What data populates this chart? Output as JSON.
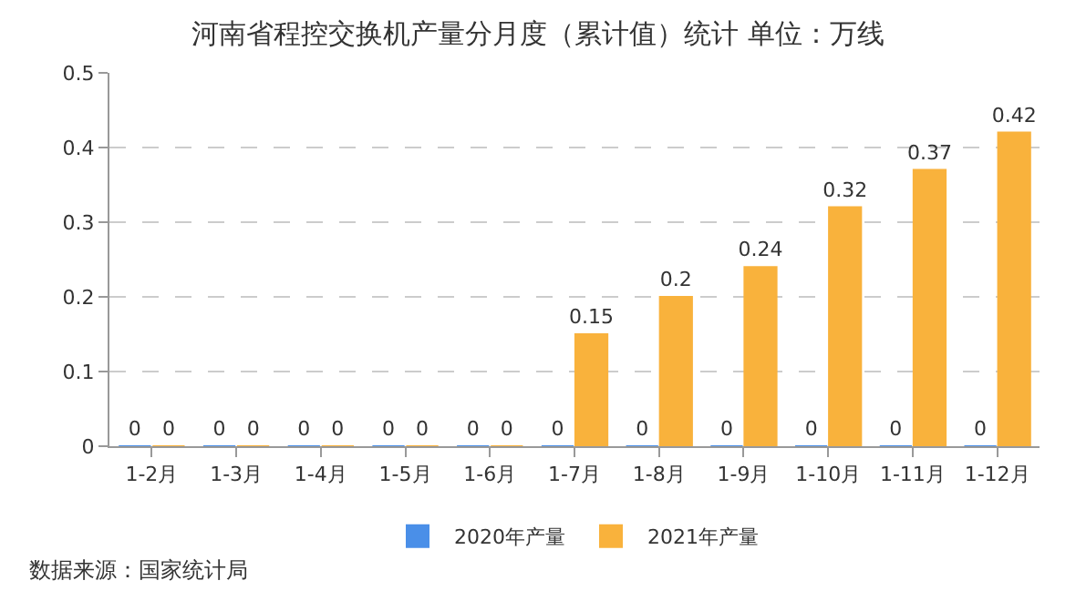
{
  "chart_data": {
    "type": "bar",
    "title": "河南省程控交换机产量分月度（累计值）统计 单位：万线",
    "categories": [
      "1-2月",
      "1-3月",
      "1-4月",
      "1-5月",
      "1-6月",
      "1-7月",
      "1-8月",
      "1-9月",
      "1-10月",
      "1-11月",
      "1-12月"
    ],
    "series": [
      {
        "name": "2020年产量",
        "color": "#4a8fe8",
        "values": [
          0,
          0,
          0,
          0,
          0,
          0,
          0,
          0,
          0,
          0,
          0
        ]
      },
      {
        "name": "2021年产量",
        "color": "#f9b23c",
        "values": [
          0,
          0,
          0,
          0,
          0,
          0.15,
          0.2,
          0.24,
          0.32,
          0.37,
          0.42
        ]
      }
    ],
    "ylim": [
      0,
      0.5
    ],
    "yticks": [
      0,
      0.1,
      0.2,
      0.3,
      0.4,
      0.5
    ],
    "grid": "y",
    "legend": "bottom",
    "data_labels": true,
    "annotations": [
      "数据来源：国家统计局"
    ]
  }
}
